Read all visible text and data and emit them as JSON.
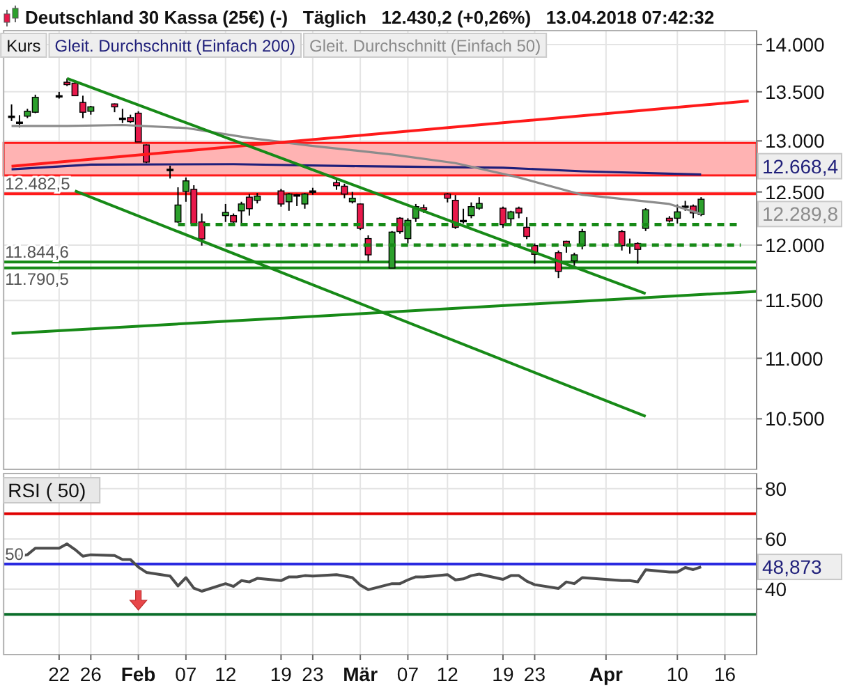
{
  "chart_data": [
    {
      "type": "candlestick",
      "title": "Deutschland 30 Kassa (25€) (-)   Täglich   12.430,2 (+0,26%)   13.04.2018 07:42:32",
      "log": "y",
      "grid": true,
      "legend": "top left",
      "tick_labels": "y",
      "x": [
        "2018-01-16",
        "2018-01-17",
        "2018-01-18",
        "2018-01-19",
        "2018-01-22",
        "2018-01-23",
        "2018-01-24",
        "2018-01-25",
        "2018-01-26",
        "2018-01-29",
        "2018-01-30",
        "2018-01-31",
        "2018-02-01",
        "2018-02-02",
        "2018-02-05",
        "2018-02-06",
        "2018-02-07",
        "2018-02-08",
        "2018-02-09",
        "2018-02-12",
        "2018-02-13",
        "2018-02-14",
        "2018-02-15",
        "2018-02-16",
        "2018-02-19",
        "2018-02-20",
        "2018-02-21",
        "2018-02-22",
        "2018-02-23",
        "2018-02-26",
        "2018-02-27",
        "2018-02-28",
        "2018-03-01",
        "2018-03-02",
        "2018-03-05",
        "2018-03-06",
        "2018-03-07",
        "2018-03-08",
        "2018-03-09",
        "2018-03-12",
        "2018-03-13",
        "2018-03-14",
        "2018-03-15",
        "2018-03-16",
        "2018-03-19",
        "2018-03-20",
        "2018-03-21",
        "2018-03-22",
        "2018-03-23",
        "2018-03-26",
        "2018-03-27",
        "2018-03-28",
        "2018-03-29",
        "2018-04-03",
        "2018-04-04",
        "2018-04-05",
        "2018-04-06",
        "2018-04-09",
        "2018-04-10",
        "2018-04-11",
        "2018-04-12",
        "2018-04-13"
      ],
      "xlim": [
        "2018-01-15",
        "2018-04-20"
      ],
      "xticks": [
        {
          "value": "2018-01-22",
          "label": null
        },
        {
          "value": "2018-01-26",
          "label": null
        },
        {
          "value": "2018-02-01",
          "label": null
        },
        {
          "value": "2018-02-07",
          "label": null
        },
        {
          "value": "2018-02-12",
          "label": null
        },
        {
          "value": "2018-02-19",
          "label": null
        },
        {
          "value": "2018-02-23",
          "label": null
        },
        {
          "value": "2018-03-01",
          "label": null
        },
        {
          "value": "2018-03-07",
          "label": null
        },
        {
          "value": "2018-03-12",
          "label": null
        },
        {
          "value": "2018-03-19",
          "label": null
        },
        {
          "value": "2018-03-23",
          "label": null
        },
        {
          "value": "2018-04-01",
          "label": null
        },
        {
          "value": "2018-04-10",
          "label": null
        },
        {
          "value": "2018-04-16",
          "label": null
        }
      ],
      "ylim": [
        10100,
        14150
      ],
      "yticks": [
        {
          "value": 10500,
          "label": "10.500"
        },
        {
          "value": 11000,
          "label": "11.000"
        },
        {
          "value": 11500,
          "label": "11.500"
        },
        {
          "value": 12000,
          "label": "12.000"
        },
        {
          "value": 12500,
          "label": "12.500"
        },
        {
          "value": 13000,
          "label": "13.000"
        },
        {
          "value": 13500,
          "label": "13.500"
        },
        {
          "value": 14000,
          "label": "14.000"
        }
      ],
      "series": [
        {
          "name": "Kurs",
          "ohlc": [
            [
              13250,
              13370,
              13200,
              13250
            ],
            [
              13190,
              13260,
              13135,
              13190
            ],
            [
              13250,
              13325,
              13230,
              13300
            ],
            [
              13290,
              13470,
              13280,
              13443
            ],
            [
              13460,
              13500,
              13430,
              13460
            ],
            [
              13600,
              13640,
              13560,
              13575
            ],
            [
              13590,
              13600,
              13460,
              13460
            ],
            [
              13390,
              13460,
              13230,
              13290
            ],
            [
              13300,
              13355,
              13265,
              13345
            ],
            [
              13375,
              13380,
              13290,
              13345
            ],
            [
              13230,
              13325,
              13180,
              13230
            ],
            [
              13235,
              13265,
              13180,
              13195
            ],
            [
              13280,
              13300,
              12990,
              12990
            ],
            [
              12960,
              12965,
              12780,
              12790
            ],
            [
              12720,
              12755,
              12630,
              12720
            ],
            [
              12215,
              12545,
              12208,
              12375
            ],
            [
              12505,
              12640,
              12406,
              12607
            ],
            [
              12525,
              12565,
              12200,
              12200
            ],
            [
              12215,
              12295,
              11995,
              12057
            ],
            [
              12275,
              12385,
              12215,
              12305
            ],
            [
              12275,
              12295,
              12208,
              12215
            ],
            [
              12320,
              12406,
              12175,
              12385
            ],
            [
              12450,
              12480,
              12275,
              12340
            ],
            [
              12420,
              12490,
              12390,
              12460
            ],
            [
              12510,
              12530,
              12360,
              12385
            ],
            [
              12406,
              12490,
              12320,
              12480
            ],
            [
              12473,
              12480,
              12365,
              12473
            ],
            [
              12385,
              12490,
              12340,
              12480
            ],
            [
              12510,
              12540,
              12473,
              12510
            ],
            [
              12590,
              12620,
              12520,
              12560
            ],
            [
              12555,
              12580,
              12440,
              12480
            ],
            [
              12406,
              12500,
              12390,
              12440
            ],
            [
              12385,
              12390,
              12140,
              12155
            ],
            [
              12060,
              12090,
              11850,
              11910
            ],
            [
              11790,
              12130,
              11790,
              12120
            ],
            [
              12250,
              12260,
              12105,
              12125
            ],
            [
              12060,
              12250,
              12015,
              12230
            ],
            [
              12250,
              12385,
              12215,
              12360
            ],
            [
              12350,
              12380,
              12300,
              12330
            ],
            [
              12480,
              12490,
              12400,
              12440
            ],
            [
              12420,
              12470,
              12150,
              12165
            ],
            [
              12230,
              12340,
              12200,
              12230
            ],
            [
              12275,
              12400,
              12250,
              12360
            ],
            [
              12345,
              12450,
              12330,
              12390
            ],
            [
              12345,
              12360,
              12160,
              12190
            ],
            [
              12245,
              12320,
              12180,
              12310
            ],
            [
              12345,
              12360,
              12250,
              12300
            ],
            [
              12165,
              12260,
              12055,
              12080
            ],
            [
              11995,
              12015,
              11830,
              11915
            ],
            [
              11930,
              11950,
              11700,
              11760
            ],
            [
              12035,
              12040,
              11930,
              11995
            ],
            [
              11855,
              11930,
              11810,
              11910
            ],
            [
              11995,
              12150,
              11960,
              12125
            ],
            [
              12125,
              12140,
              11950,
              11995
            ],
            [
              12005,
              12060,
              11920,
              12005
            ],
            [
              12015,
              12025,
              11830,
              11960
            ],
            [
              12155,
              12345,
              12130,
              12330
            ],
            [
              12250,
              12270,
              12210,
              12225
            ],
            [
              12250,
              12380,
              12200,
              12310
            ],
            [
              12365,
              12415,
              12320,
              12365
            ],
            [
              12365,
              12380,
              12250,
              12300
            ],
            [
              12285,
              12450,
              12270,
              12430
            ]
          ],
          "colors": [
            "#000000",
            "#000000",
            "#2ca02c",
            "#2ca02c",
            "#000000",
            "#e8194b",
            "#e8194b",
            "#e8194b",
            "#2ca02c",
            "#e8194b",
            "#000000",
            "#e8194b",
            "#e8194b",
            "#e8194b",
            "#000000",
            "#2ca02c",
            "#2ca02c",
            "#e8194b",
            "#e8194b",
            "#2ca02c",
            "#e8194b",
            "#2ca02c",
            "#e8194b",
            "#2ca02c",
            "#e8194b",
            "#2ca02c",
            "#000000",
            "#2ca02c",
            "#000000",
            "#e8194b",
            "#e8194b",
            "#2ca02c",
            "#e8194b",
            "#e8194b",
            "#2ca02c",
            "#e8194b",
            "#2ca02c",
            "#2ca02c",
            "#e8194b",
            "#e8194b",
            "#e8194b",
            "#000000",
            "#2ca02c",
            "#2ca02c",
            "#e8194b",
            "#2ca02c",
            "#e8194b",
            "#e8194b",
            "#e8194b",
            "#e8194b",
            "#e8194b",
            "#2ca02c",
            "#2ca02c",
            "#e8194b",
            "#000000",
            "#e8194b",
            "#2ca02c",
            "#e8194b",
            "#2ca02c",
            "#000000",
            "#e8194b",
            "#2ca02c"
          ]
        },
        {
          "type": "line",
          "name": "Gleit. Durchschnitt (Einfach 200)",
          "color": "#1f1f7a",
          "x": [
            "2018-01-16",
            "2018-01-26",
            "2018-02-13",
            "2018-03-01",
            "2018-03-19",
            "2018-03-29",
            "2018-04-13"
          ],
          "values": [
            12720,
            12765,
            12770,
            12750,
            12735,
            12700,
            12668.4
          ]
        },
        {
          "type": "line",
          "name": "Gleit. Durchschnitt (Einfach 50)",
          "color": "#8c8c8c",
          "x": [
            "2018-01-16",
            "2018-01-23",
            "2018-01-30",
            "2018-02-07",
            "2018-02-15",
            "2018-02-23",
            "2018-03-05",
            "2018-03-13",
            "2018-03-21",
            "2018-03-29",
            "2018-04-09",
            "2018-04-13"
          ],
          "values": [
            13150,
            13150,
            13160,
            13130,
            13030,
            12950,
            12865,
            12780,
            12640,
            12473,
            12385,
            12289.8
          ]
        },
        {
          "type": "line",
          "color": "#ff1a1a",
          "x": [
            "2018-01-16",
            "2018-04-19"
          ],
          "values": [
            12750,
            13405
          ]
        },
        {
          "type": "line",
          "color": "#178a17",
          "x": [
            "2018-01-23",
            "2018-04-06"
          ],
          "values": [
            13640,
            11560
          ]
        },
        {
          "type": "line",
          "color": "#178a17",
          "x": [
            "2018-01-24",
            "2018-04-06"
          ],
          "values": [
            12510,
            10520
          ]
        },
        {
          "type": "line",
          "color": "#178a17",
          "x": [
            "2018-01-16",
            "2018-04-20"
          ],
          "values": [
            11213,
            11580
          ]
        },
        {
          "type": "line",
          "color": "#178a17",
          "line_style": "dashed",
          "x": [
            "2018-02-06",
            "2018-04-18"
          ],
          "values": [
            12190,
            12190
          ]
        },
        {
          "type": "line",
          "color": "#178a17",
          "line_style": "dashed",
          "x": [
            "2018-02-12",
            "2018-04-18"
          ],
          "values": [
            12000,
            12000
          ]
        }
      ],
      "bands": [
        {
          "axis": "y",
          "from": 12660,
          "to": 12980,
          "color": "#ffb3b3"
        }
      ],
      "ref_lines": [
        {
          "axis": "y",
          "value": 12482.5,
          "label": "12.482,5",
          "color": "#ff1a1a"
        },
        {
          "axis": "y",
          "value": 11844.6,
          "label": "11.844,6",
          "color": "#178a17"
        },
        {
          "axis": "y",
          "value": 11790.5,
          "label": "11.790,5",
          "color": "#178a17"
        }
      ],
      "annotations": [
        "12.668,4",
        "12.289,8"
      ]
    },
    {
      "type": "line",
      "title": "RSI ( 50)",
      "grid": true,
      "x": [
        "2018-01-16",
        "2018-01-17",
        "2018-01-18",
        "2018-01-19",
        "2018-01-22",
        "2018-01-23",
        "2018-01-24",
        "2018-01-25",
        "2018-01-26",
        "2018-01-29",
        "2018-01-30",
        "2018-01-31",
        "2018-02-01",
        "2018-02-02",
        "2018-02-05",
        "2018-02-06",
        "2018-02-07",
        "2018-02-08",
        "2018-02-09",
        "2018-02-12",
        "2018-02-13",
        "2018-02-14",
        "2018-02-15",
        "2018-02-16",
        "2018-02-19",
        "2018-02-20",
        "2018-02-21",
        "2018-02-22",
        "2018-02-23",
        "2018-02-26",
        "2018-02-27",
        "2018-02-28",
        "2018-03-01",
        "2018-03-02",
        "2018-03-05",
        "2018-03-06",
        "2018-03-07",
        "2018-03-08",
        "2018-03-09",
        "2018-03-12",
        "2018-03-13",
        "2018-03-14",
        "2018-03-15",
        "2018-03-16",
        "2018-03-19",
        "2018-03-20",
        "2018-03-21",
        "2018-03-22",
        "2018-03-23",
        "2018-03-26",
        "2018-03-27",
        "2018-03-28",
        "2018-03-29",
        "2018-04-03",
        "2018-04-04",
        "2018-04-05",
        "2018-04-06",
        "2018-04-09",
        "2018-04-10",
        "2018-04-11",
        "2018-04-12",
        "2018-04-13"
      ],
      "xlim": [
        "2018-01-15",
        "2018-04-20"
      ],
      "xticks": [
        {
          "value": "2018-01-22",
          "label": "22"
        },
        {
          "value": "2018-01-26",
          "label": "26"
        },
        {
          "value": "2018-02-01",
          "label": "Feb"
        },
        {
          "value": "2018-02-07",
          "label": "07"
        },
        {
          "value": "2018-02-12",
          "label": "12"
        },
        {
          "value": "2018-02-19",
          "label": "19"
        },
        {
          "value": "2018-02-23",
          "label": "23"
        },
        {
          "value": "2018-03-01",
          "label": "Mär"
        },
        {
          "value": "2018-03-07",
          "label": "07"
        },
        {
          "value": "2018-03-12",
          "label": "12"
        },
        {
          "value": "2018-03-19",
          "label": "19"
        },
        {
          "value": "2018-03-23",
          "label": "23"
        },
        {
          "value": "2018-04-01",
          "label": "Apr"
        },
        {
          "value": "2018-04-10",
          "label": "10"
        },
        {
          "value": "2018-04-16",
          "label": "16"
        }
      ],
      "ylim": [
        14,
        86
      ],
      "yticks": [
        40,
        60,
        80
      ],
      "series": [
        {
          "color": "#4d4d4d",
          "values": [
            52.7,
            53.2,
            53.7,
            56.3,
            56.3,
            58.0,
            55.8,
            53.1,
            53.7,
            53.4,
            51.8,
            51.8,
            48.8,
            46.7,
            45.2,
            41.3,
            44.6,
            40.4,
            39.2,
            42.2,
            41.1,
            43.4,
            42.9,
            44.3,
            43.4,
            44.9,
            44.9,
            45.4,
            45.2,
            45.8,
            45.2,
            44.6,
            41.6,
            39.8,
            42.2,
            42.2,
            43.7,
            44.9,
            44.9,
            45.8,
            43.7,
            44.1,
            45.4,
            46.0,
            43.9,
            45.4,
            45.4,
            43.2,
            41.8,
            40.3,
            42.9,
            42.2,
            44.6,
            43.4,
            43.4,
            42.9,
            47.7,
            46.8,
            46.8,
            48.6,
            47.8,
            48.873
          ]
        }
      ],
      "ref_lines": [
        {
          "axis": "y",
          "value": 70,
          "color": "#e00000"
        },
        {
          "axis": "y",
          "value": 50,
          "label": "50",
          "color": "#2a2ae0"
        },
        {
          "axis": "y",
          "value": 30,
          "color": "#0a6e2a"
        }
      ],
      "annotations": [
        "48,873"
      ]
    }
  ]
}
